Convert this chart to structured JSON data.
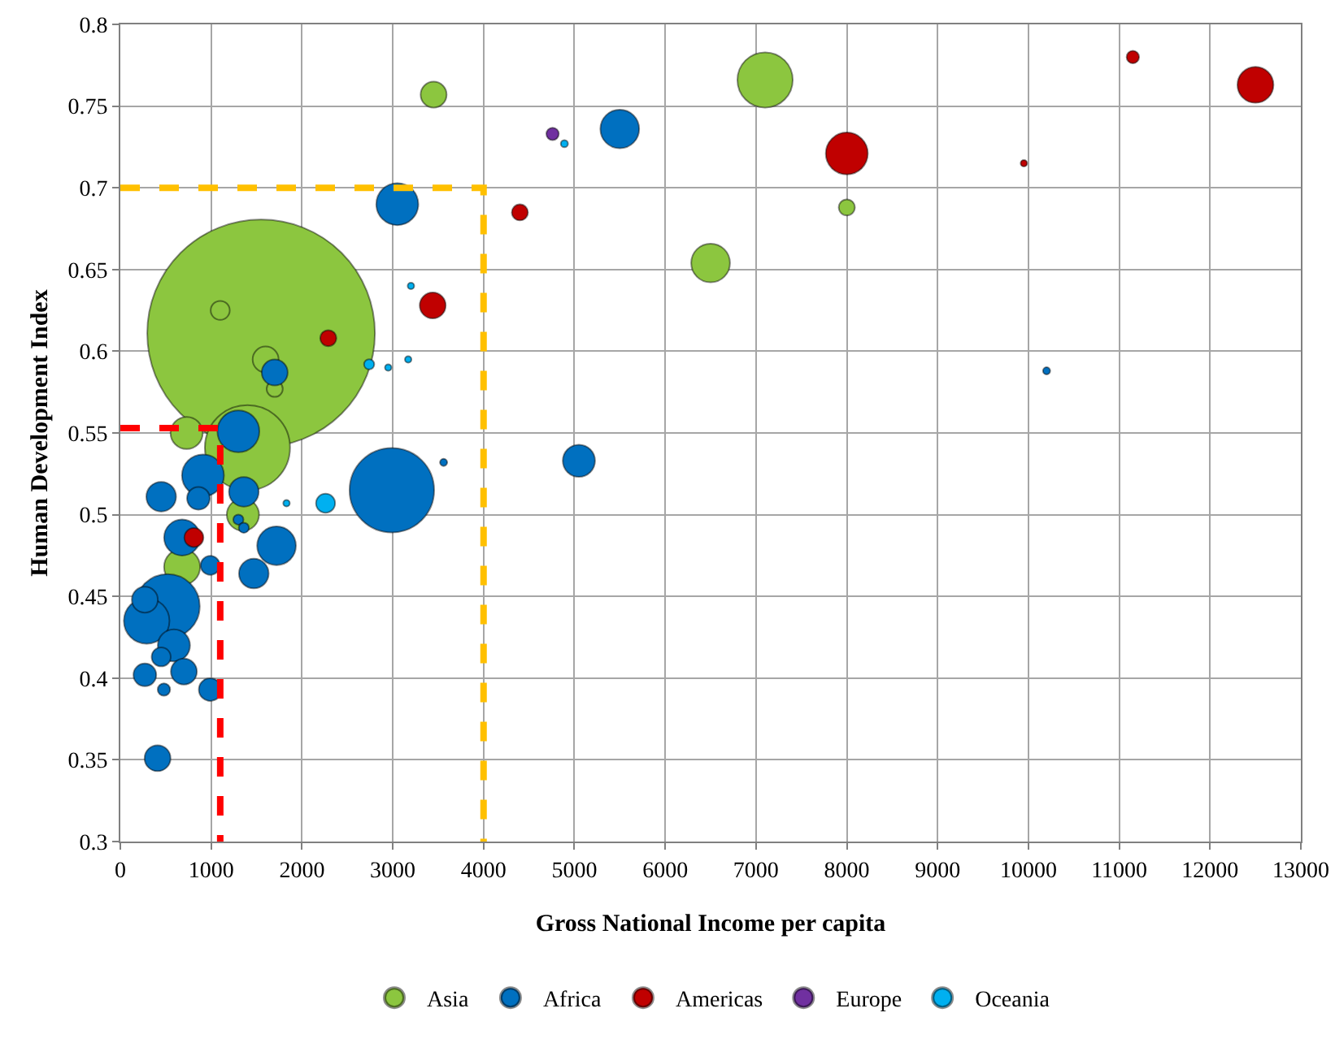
{
  "chart_data": {
    "type": "bubble",
    "xlabel": "Gross National Income per capita",
    "ylabel": "Human Development Index",
    "xlim": [
      0,
      13000
    ],
    "ylim": [
      0.3,
      0.8
    ],
    "xticks": [
      0,
      1000,
      2000,
      3000,
      4000,
      5000,
      6000,
      7000,
      8000,
      9000,
      10000,
      11000,
      12000,
      13000
    ],
    "yticks": [
      0.3,
      0.35,
      0.4,
      0.45,
      0.5,
      0.55,
      0.6,
      0.65,
      0.7,
      0.75,
      0.8
    ],
    "grid": true,
    "legend": "bottom",
    "series": [
      {
        "name": "Asia",
        "color": "#8cc63f",
        "marker": "circle",
        "x": [
          1550,
          1100,
          1400,
          3450,
          7100,
          6500,
          8000,
          1600,
          1700,
          730,
          1350,
          680
        ],
        "values": [
          0.611,
          0.625,
          0.541,
          0.757,
          0.766,
          0.654,
          0.688,
          0.595,
          0.577,
          0.55,
          0.5,
          0.468
        ],
        "sizes": [
          1,
          0.007,
          0.14,
          0.013,
          0.059,
          0.029,
          0.005,
          0.013,
          0.005,
          0.02,
          0.02,
          0.025
        ]
      },
      {
        "name": "Africa",
        "color": "#0070c0",
        "marker": "circle",
        "x": [
          2990,
          3050,
          5500,
          5050,
          10200,
          1300,
          1700,
          910,
          450,
          860,
          1360,
          1300,
          1360,
          680,
          1720,
          1470,
          990,
          3560,
          520,
          290,
          270,
          590,
          450,
          700,
          270,
          990,
          480,
          410
        ],
        "values": [
          0.515,
          0.69,
          0.736,
          0.533,
          0.588,
          0.551,
          0.587,
          0.524,
          0.511,
          0.51,
          0.514,
          0.497,
          0.492,
          0.486,
          0.481,
          0.464,
          0.469,
          0.532,
          0.444,
          0.435,
          0.448,
          0.42,
          0.413,
          0.404,
          0.402,
          0.393,
          0.393,
          0.351
        ],
        "sizes": [
          0.138,
          0.034,
          0.029,
          0.02,
          0.001,
          0.034,
          0.013,
          0.034,
          0.017,
          0.01,
          0.017,
          0.002,
          0.002,
          0.025,
          0.029,
          0.017,
          0.007,
          0.001,
          0.08,
          0.04,
          0.013,
          0.02,
          0.007,
          0.013,
          0.01,
          0.01,
          0.003,
          0.013
        ]
      },
      {
        "name": "Americas",
        "color": "#c00000",
        "marker": "circle",
        "x": [
          2290,
          3440,
          810,
          4400,
          8000,
          9950,
          11150,
          12500
        ],
        "values": [
          0.608,
          0.628,
          0.486,
          0.685,
          0.721,
          0.715,
          0.78,
          0.763
        ],
        "sizes": [
          0.005,
          0.013,
          0.007,
          0.005,
          0.034,
          0.0003,
          0.003,
          0.025
        ]
      },
      {
        "name": "Europe",
        "color": "#7030a0",
        "marker": "circle",
        "x": [
          4760
        ],
        "values": [
          0.733
        ],
        "sizes": [
          0.003
        ]
      },
      {
        "name": "Oceania",
        "color": "#00b0f0",
        "marker": "circle",
        "x": [
          2260,
          4890,
          2740,
          2950,
          3170,
          3200,
          1830
        ],
        "values": [
          0.507,
          0.727,
          0.592,
          0.59,
          0.595,
          0.64,
          0.507
        ],
        "sizes": [
          0.007,
          0.001,
          0.002,
          0.0005,
          0.0008,
          0.0005,
          0.0008
        ]
      },
      {
        "type": "line",
        "color": "#ffc000",
        "line_style": "dashed",
        "x": [
          0,
          4000,
          4000
        ],
        "values": [
          0.7,
          0.7,
          0.3
        ]
      },
      {
        "type": "line",
        "color": "#ff0000",
        "line_style": "dashed",
        "x": [
          0,
          1100,
          1100
        ],
        "values": [
          0.553,
          0.553,
          0.3
        ]
      }
    ]
  }
}
